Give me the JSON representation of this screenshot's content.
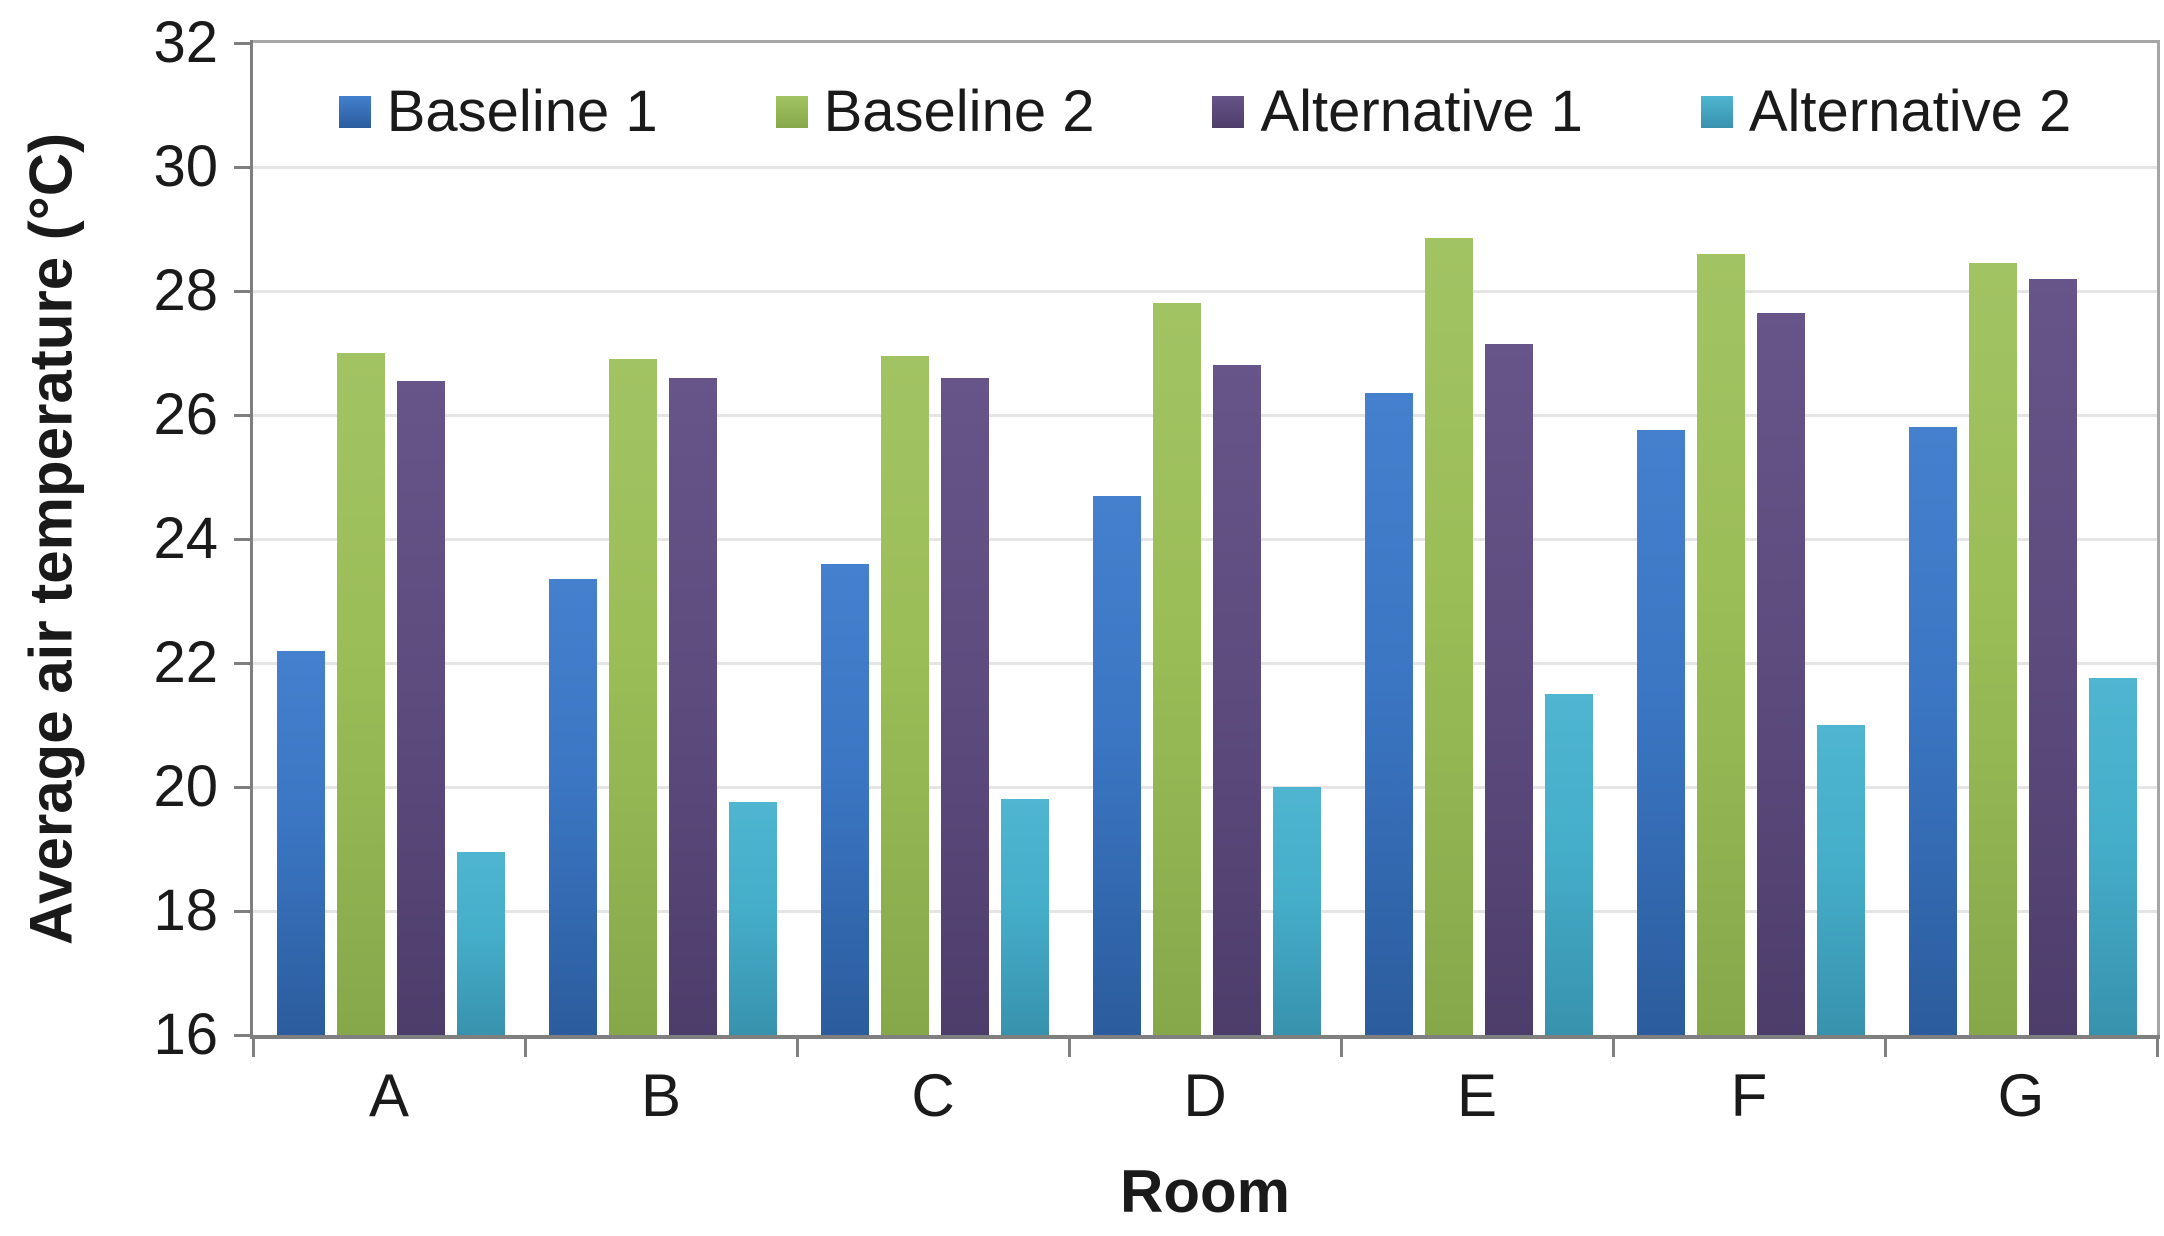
{
  "chart_data": {
    "type": "bar",
    "xlabel": "Room",
    "ylabel": "Average air temperature (°C)",
    "categories": [
      "A",
      "B",
      "C",
      "D",
      "E",
      "F",
      "G"
    ],
    "series": [
      {
        "name": "Baseline 1",
        "color": "#3B76C3",
        "fill_top": "#4480CD",
        "fill_bottom": "#2B5C9D",
        "values": [
          22.2,
          23.35,
          23.6,
          24.7,
          26.35,
          25.75,
          25.8
        ]
      },
      {
        "name": "Baseline 2",
        "color": "#9BBD57",
        "fill_top": "#A2C363",
        "fill_bottom": "#86A84B",
        "values": [
          27.0,
          26.9,
          26.95,
          27.8,
          28.85,
          28.6,
          28.45
        ]
      },
      {
        "name": "Alternative 1",
        "color": "#5E4C7F",
        "fill_top": "#675488",
        "fill_bottom": "#4D3D6B",
        "values": [
          26.55,
          26.6,
          26.6,
          26.8,
          27.15,
          27.65,
          28.2
        ]
      },
      {
        "name": "Alternative 2",
        "color": "#45AEC9",
        "fill_top": "#4FB5D0",
        "fill_bottom": "#3892AE",
        "values": [
          18.95,
          19.75,
          19.8,
          20.0,
          21.5,
          21.0,
          21.75
        ]
      }
    ],
    "ylim": [
      16,
      32
    ],
    "yticks": [
      16,
      18,
      20,
      22,
      24,
      26,
      28,
      30,
      32
    ],
    "grid": true,
    "legend_position": "top-inside",
    "text_color": "#1A1A1A",
    "gridline_color": "#E5E5E5",
    "axis_color": "#7F7F7F",
    "border_color": "#A6A6A6"
  }
}
